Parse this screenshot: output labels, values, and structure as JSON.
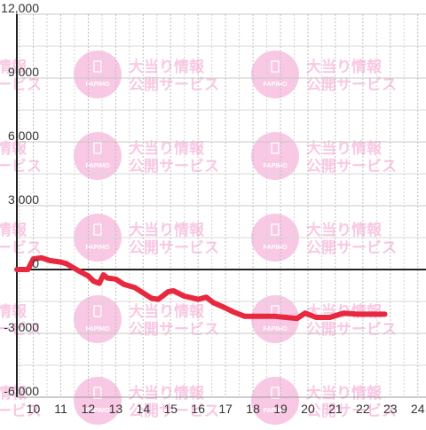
{
  "watermark": {
    "logo_text": "PAPIMO",
    "line1": "大当り情報",
    "line2": "公開サービス",
    "color": "#f9c8e4"
  },
  "chart_data": {
    "type": "line",
    "title": "",
    "xlabel": "",
    "ylabel": "",
    "x_ticks": [
      "10",
      "11",
      "12",
      "13",
      "14",
      "15",
      "16",
      "17",
      "18",
      "19",
      "20",
      "21",
      "22",
      "23",
      "24"
    ],
    "y_ticks": [
      "12,000",
      "9,000",
      "6,000",
      "3,000",
      "0",
      "-3,000",
      "-6,000"
    ],
    "xlim": [
      9.4,
      24.3
    ],
    "ylim": [
      -6000,
      12000
    ],
    "y_tick_values": [
      12000,
      9000,
      6000,
      3000,
      0,
      -3000,
      -6000
    ],
    "x_tick_values": [
      10,
      11,
      12,
      13,
      14,
      15,
      16,
      17,
      18,
      19,
      20,
      21,
      22,
      23,
      24
    ],
    "grid": true,
    "series": [
      {
        "color": "#e8283f",
        "points": [
          [
            9.4,
            0
          ],
          [
            9.8,
            0
          ],
          [
            10.0,
            500
          ],
          [
            10.3,
            550
          ],
          [
            10.6,
            420
          ],
          [
            11.0,
            350
          ],
          [
            11.2,
            280
          ],
          [
            11.5,
            50
          ],
          [
            11.7,
            -100
          ],
          [
            12.0,
            -300
          ],
          [
            12.2,
            -550
          ],
          [
            12.4,
            -650
          ],
          [
            12.55,
            -250
          ],
          [
            12.7,
            -400
          ],
          [
            13.0,
            -450
          ],
          [
            13.3,
            -700
          ],
          [
            13.7,
            -850
          ],
          [
            14.0,
            -1100
          ],
          [
            14.3,
            -1350
          ],
          [
            14.55,
            -1400
          ],
          [
            14.9,
            -1050
          ],
          [
            15.1,
            -1000
          ],
          [
            15.5,
            -1250
          ],
          [
            16.0,
            -1400
          ],
          [
            16.3,
            -1300
          ],
          [
            16.55,
            -1550
          ],
          [
            16.9,
            -1750
          ],
          [
            17.3,
            -2000
          ],
          [
            17.7,
            -2200
          ],
          [
            18.3,
            -2200
          ],
          [
            18.8,
            -2200
          ],
          [
            19.2,
            -2250
          ],
          [
            19.6,
            -2300
          ],
          [
            19.9,
            -2050
          ],
          [
            20.3,
            -2250
          ],
          [
            20.8,
            -2250
          ],
          [
            21.3,
            -2050
          ],
          [
            21.8,
            -2100
          ],
          [
            22.3,
            -2100
          ],
          [
            22.8,
            -2100
          ]
        ]
      }
    ]
  }
}
